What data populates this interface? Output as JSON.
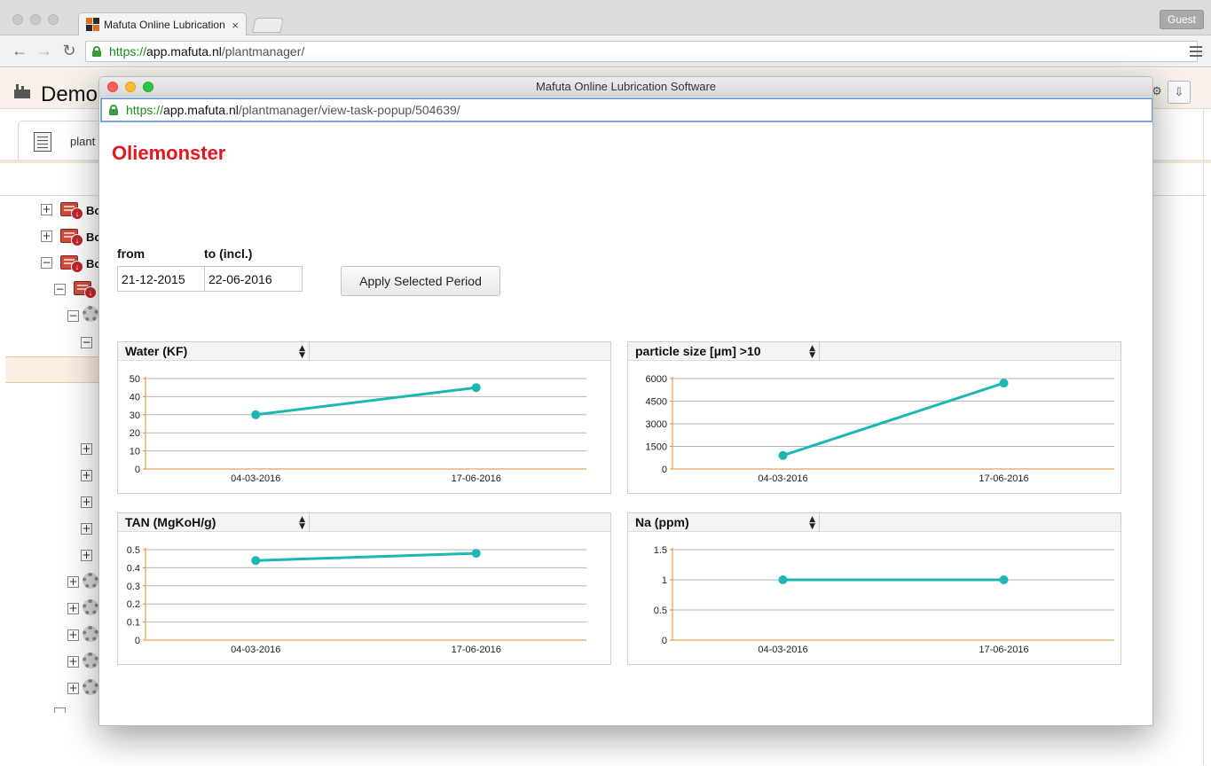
{
  "browser": {
    "tab_title": "Mafuta Online Lubrication Software",
    "tab_close": "×",
    "guest_label": "Guest",
    "url": {
      "scheme": "https://",
      "host": "app.mafuta.nl",
      "path": "/plantmanager/"
    }
  },
  "app": {
    "title": "Demo",
    "tab_label": "plant",
    "tree_items": [
      "Bo",
      "Bo",
      "Bo"
    ]
  },
  "popup": {
    "window_title": "Mafuta Online Lubrication Software",
    "url": {
      "scheme": "https://",
      "host": "app.mafuta.nl",
      "path": "/plantmanager/view-task-popup/504639/"
    },
    "page_title": "Oliemonster",
    "period": {
      "from_label": "from",
      "to_label": "to (incl.)",
      "from_value": "21-12-2015",
      "to_value": "22-06-2016",
      "apply_label": "Apply Selected Period"
    },
    "colors": {
      "line": "#1db7b3",
      "axis": "#e0892b",
      "grid": "#b5b5b5",
      "title": "#e8141c"
    }
  },
  "chart_data": [
    {
      "type": "line",
      "title": "Water (KF)",
      "categories": [
        "04-03-2016",
        "17-06-2016"
      ],
      "series": [
        {
          "values": [
            30,
            45
          ]
        }
      ],
      "ylim": [
        0,
        50
      ],
      "yticks": [
        0,
        10,
        20,
        30,
        40,
        50
      ],
      "ytick_labels": [
        "0",
        "10",
        "20",
        "30",
        "40",
        "50"
      ],
      "grid": true
    },
    {
      "type": "line",
      "title": "particle size [µm] >10",
      "categories": [
        "04-03-2016",
        "17-06-2016"
      ],
      "series": [
        {
          "values": [
            900,
            5700
          ]
        }
      ],
      "ylim": [
        0,
        6000
      ],
      "yticks": [
        0,
        1500,
        3000,
        4500,
        6000
      ],
      "ytick_labels": [
        "0",
        "1500",
        "3000",
        "4500",
        "6000"
      ],
      "grid": true
    },
    {
      "type": "line",
      "title": "TAN (MgKoH/g)",
      "categories": [
        "04-03-2016",
        "17-06-2016"
      ],
      "series": [
        {
          "values": [
            0.44,
            0.48
          ]
        }
      ],
      "ylim": [
        0,
        0.5
      ],
      "yticks": [
        0,
        0.1,
        0.2,
        0.3,
        0.4,
        0.5
      ],
      "ytick_labels": [
        "0",
        "0.1",
        "0.2",
        "0.3",
        "0.4",
        "0.5"
      ],
      "grid": true
    },
    {
      "type": "line",
      "title": "Na (ppm)",
      "categories": [
        "04-03-2016",
        "17-06-2016"
      ],
      "series": [
        {
          "values": [
            1,
            1
          ]
        }
      ],
      "ylim": [
        0,
        1.5
      ],
      "yticks": [
        0,
        0.5,
        1,
        1.5
      ],
      "ytick_labels": [
        "0",
        "0.5",
        "1",
        "1.5"
      ],
      "grid": true
    }
  ]
}
